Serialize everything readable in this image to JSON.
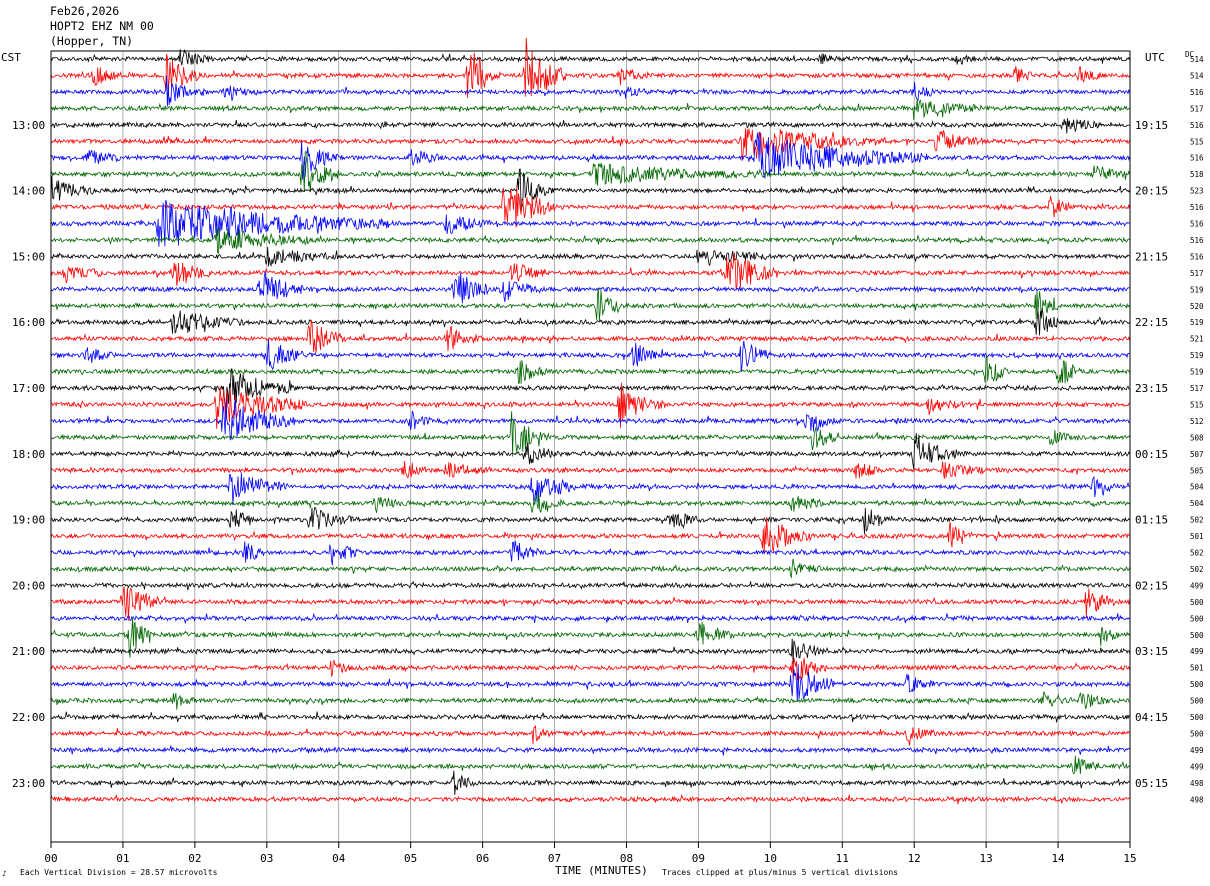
{
  "header": {
    "date": "Feb26,2026",
    "station": "HOPT2 EHZ NM 00",
    "location": "(Hopper, TN)"
  },
  "left_timezone": "CST",
  "right_timezone": "UTC",
  "dc_header": "DC",
  "footer": {
    "corner_mark": "♪",
    "scale": "Each Vertical Division =   28.57 microvolts",
    "clip_note": "Traces clipped at plus/minus 5 vertical divisions"
  },
  "chart_data": {
    "type": "line",
    "subtype": "helicorder",
    "xlabel": "TIME (MINUTES)",
    "xlim": [
      0,
      15
    ],
    "x_ticks": [
      "00",
      "01",
      "02",
      "03",
      "04",
      "05",
      "06",
      "07",
      "08",
      "09",
      "10",
      "11",
      "12",
      "13",
      "14",
      "15"
    ],
    "left_hour_labels": [
      "13:00",
      "14:00",
      "15:00",
      "16:00",
      "17:00",
      "18:00",
      "19:00",
      "20:00",
      "21:00",
      "22:00",
      "23:00"
    ],
    "right_hour_labels": [
      "19:15",
      "20:15",
      "21:15",
      "22:15",
      "23:15",
      "00:15",
      "01:15",
      "02:15",
      "03:15",
      "04:15",
      "05:15"
    ],
    "minutes_per_line": 15,
    "first_line_hour_offset": 4,
    "line_colors": [
      "#000000",
      "#ff0000",
      "#0000ff",
      "#006600"
    ],
    "grid": true,
    "dc_offsets": [
      514,
      514,
      516,
      517,
      516,
      515,
      516,
      518,
      523,
      516,
      516,
      516,
      516,
      517,
      519,
      520,
      519,
      521,
      519,
      519,
      517,
      515,
      512,
      508,
      507,
      505,
      504,
      504,
      502,
      501,
      502,
      502,
      499,
      500,
      500,
      500,
      499,
      501,
      500,
      500,
      500,
      500,
      499,
      499,
      498,
      498
    ],
    "events": [
      {
        "line": 0,
        "start": 1.8,
        "dur": 0.45,
        "amp": 1.2
      },
      {
        "line": 0,
        "start": 10.7,
        "dur": 0.25,
        "amp": 0.8
      },
      {
        "line": 0,
        "start": 12.6,
        "dur": 0.3,
        "amp": 0.6
      },
      {
        "line": 1,
        "start": 0.6,
        "dur": 0.4,
        "amp": 1.2
      },
      {
        "line": 1,
        "start": 1.6,
        "dur": 0.5,
        "amp": 2.5
      },
      {
        "line": 1,
        "start": 5.8,
        "dur": 0.45,
        "amp": 3.5
      },
      {
        "line": 1,
        "start": 6.6,
        "dur": 0.55,
        "amp": 4.5
      },
      {
        "line": 1,
        "start": 7.9,
        "dur": 0.4,
        "amp": 1.0
      },
      {
        "line": 1,
        "start": 13.4,
        "dur": 0.3,
        "amp": 0.9
      },
      {
        "line": 1,
        "start": 14.3,
        "dur": 0.3,
        "amp": 1.0
      },
      {
        "line": 2,
        "start": 1.6,
        "dur": 0.5,
        "amp": 1.6
      },
      {
        "line": 2,
        "start": 2.4,
        "dur": 0.5,
        "amp": 0.8
      },
      {
        "line": 2,
        "start": 8.0,
        "dur": 0.3,
        "amp": 0.8
      },
      {
        "line": 2,
        "start": 12.0,
        "dur": 0.3,
        "amp": 1.0
      },
      {
        "line": 3,
        "start": 12.0,
        "dur": 1.0,
        "amp": 1.2
      },
      {
        "line": 4,
        "start": 14.1,
        "dur": 0.5,
        "amp": 1.0
      },
      {
        "line": 5,
        "start": 9.6,
        "dur": 2.0,
        "amp": 2.2
      },
      {
        "line": 5,
        "start": 12.3,
        "dur": 0.6,
        "amp": 1.5
      },
      {
        "line": 6,
        "start": 0.5,
        "dur": 0.5,
        "amp": 1.0
      },
      {
        "line": 6,
        "start": 3.5,
        "dur": 0.5,
        "amp": 2.5
      },
      {
        "line": 6,
        "start": 5.0,
        "dur": 0.5,
        "amp": 1.0
      },
      {
        "line": 6,
        "start": 9.8,
        "dur": 2.4,
        "amp": 2.8
      },
      {
        "line": 7,
        "start": 3.5,
        "dur": 0.5,
        "amp": 3.0
      },
      {
        "line": 7,
        "start": 7.5,
        "dur": 2.5,
        "amp": 1.2
      },
      {
        "line": 7,
        "start": 14.5,
        "dur": 0.5,
        "amp": 1.0
      },
      {
        "line": 8,
        "start": 0.0,
        "dur": 0.6,
        "amp": 1.5
      },
      {
        "line": 8,
        "start": 6.5,
        "dur": 0.5,
        "amp": 2.5
      },
      {
        "line": 9,
        "start": 6.3,
        "dur": 0.7,
        "amp": 3.5
      },
      {
        "line": 9,
        "start": 13.9,
        "dur": 0.3,
        "amp": 1.5
      },
      {
        "line": 10,
        "start": 1.5,
        "dur": 3.2,
        "amp": 2.8
      },
      {
        "line": 10,
        "start": 5.5,
        "dur": 0.6,
        "amp": 1.3
      },
      {
        "line": 11,
        "start": 2.3,
        "dur": 1.5,
        "amp": 1.5
      },
      {
        "line": 12,
        "start": 3.0,
        "dur": 1.0,
        "amp": 1.0
      },
      {
        "line": 12,
        "start": 9.0,
        "dur": 1.0,
        "amp": 1.0
      },
      {
        "line": 13,
        "start": 0.2,
        "dur": 0.5,
        "amp": 1.3
      },
      {
        "line": 13,
        "start": 1.7,
        "dur": 0.5,
        "amp": 2.0
      },
      {
        "line": 13,
        "start": 6.4,
        "dur": 0.5,
        "amp": 1.5
      },
      {
        "line": 13,
        "start": 9.4,
        "dur": 0.7,
        "amp": 3.0
      },
      {
        "line": 14,
        "start": 2.9,
        "dur": 0.6,
        "amp": 2.5
      },
      {
        "line": 14,
        "start": 5.6,
        "dur": 0.5,
        "amp": 2.5
      },
      {
        "line": 14,
        "start": 6.3,
        "dur": 0.5,
        "amp": 1.5
      },
      {
        "line": 15,
        "start": 7.6,
        "dur": 0.3,
        "amp": 2.5
      },
      {
        "line": 15,
        "start": 13.7,
        "dur": 0.3,
        "amp": 2.0
      },
      {
        "line": 16,
        "start": 1.7,
        "dur": 1.0,
        "amp": 1.5
      },
      {
        "line": 16,
        "start": 13.7,
        "dur": 0.3,
        "amp": 2.5
      },
      {
        "line": 17,
        "start": 3.6,
        "dur": 0.5,
        "amp": 2.5
      },
      {
        "line": 17,
        "start": 5.5,
        "dur": 0.5,
        "amp": 1.5
      },
      {
        "line": 18,
        "start": 0.5,
        "dur": 0.4,
        "amp": 1.0
      },
      {
        "line": 18,
        "start": 3.0,
        "dur": 0.5,
        "amp": 2.0
      },
      {
        "line": 18,
        "start": 8.1,
        "dur": 0.4,
        "amp": 1.5
      },
      {
        "line": 18,
        "start": 9.6,
        "dur": 0.4,
        "amp": 2.0
      },
      {
        "line": 19,
        "start": 6.5,
        "dur": 0.4,
        "amp": 1.5
      },
      {
        "line": 19,
        "start": 13.0,
        "dur": 0.3,
        "amp": 2.5
      },
      {
        "line": 19,
        "start": 14.0,
        "dur": 0.3,
        "amp": 2.5
      },
      {
        "line": 20,
        "start": 2.4,
        "dur": 1.0,
        "amp": 2.5
      },
      {
        "line": 21,
        "start": 2.3,
        "dur": 1.3,
        "amp": 2.5
      },
      {
        "line": 21,
        "start": 7.9,
        "dur": 0.6,
        "amp": 2.5
      },
      {
        "line": 21,
        "start": 12.2,
        "dur": 0.5,
        "amp": 1.0
      },
      {
        "line": 22,
        "start": 2.4,
        "dur": 1.0,
        "amp": 3.0
      },
      {
        "line": 22,
        "start": 5.0,
        "dur": 0.3,
        "amp": 1.0
      },
      {
        "line": 22,
        "start": 10.5,
        "dur": 0.4,
        "amp": 2.0
      },
      {
        "line": 23,
        "start": 6.4,
        "dur": 0.5,
        "amp": 3.0
      },
      {
        "line": 23,
        "start": 10.6,
        "dur": 0.3,
        "amp": 2.0
      },
      {
        "line": 23,
        "start": 13.9,
        "dur": 0.3,
        "amp": 1.0
      },
      {
        "line": 24,
        "start": 6.6,
        "dur": 0.5,
        "amp": 1.5
      },
      {
        "line": 24,
        "start": 12.0,
        "dur": 0.6,
        "amp": 2.5
      },
      {
        "line": 25,
        "start": 4.9,
        "dur": 0.3,
        "amp": 1.0
      },
      {
        "line": 25,
        "start": 5.5,
        "dur": 0.6,
        "amp": 1.0
      },
      {
        "line": 25,
        "start": 11.2,
        "dur": 0.4,
        "amp": 1.0
      },
      {
        "line": 25,
        "start": 12.4,
        "dur": 0.6,
        "amp": 1.0
      },
      {
        "line": 26,
        "start": 2.5,
        "dur": 0.8,
        "amp": 2.0
      },
      {
        "line": 26,
        "start": 6.7,
        "dur": 0.6,
        "amp": 2.5
      },
      {
        "line": 26,
        "start": 14.5,
        "dur": 0.3,
        "amp": 1.2
      },
      {
        "line": 27,
        "start": 4.5,
        "dur": 0.5,
        "amp": 1.0
      },
      {
        "line": 27,
        "start": 6.7,
        "dur": 0.4,
        "amp": 1.5
      },
      {
        "line": 27,
        "start": 10.3,
        "dur": 0.5,
        "amp": 1.0
      },
      {
        "line": 28,
        "start": 2.5,
        "dur": 0.4,
        "amp": 1.5
      },
      {
        "line": 28,
        "start": 3.6,
        "dur": 0.6,
        "amp": 1.5
      },
      {
        "line": 28,
        "start": 8.6,
        "dur": 0.5,
        "amp": 1.0
      },
      {
        "line": 28,
        "start": 11.3,
        "dur": 0.4,
        "amp": 1.5
      },
      {
        "line": 29,
        "start": 9.9,
        "dur": 0.7,
        "amp": 2.5
      },
      {
        "line": 29,
        "start": 12.5,
        "dur": 0.3,
        "amp": 1.5
      },
      {
        "line": 30,
        "start": 2.7,
        "dur": 0.3,
        "amp": 1.5
      },
      {
        "line": 30,
        "start": 3.9,
        "dur": 0.4,
        "amp": 1.8
      },
      {
        "line": 30,
        "start": 6.4,
        "dur": 0.4,
        "amp": 1.5
      },
      {
        "line": 31,
        "start": 10.3,
        "dur": 0.4,
        "amp": 1.0
      },
      {
        "line": 33,
        "start": 1.0,
        "dur": 0.6,
        "amp": 2.5
      },
      {
        "line": 33,
        "start": 14.4,
        "dur": 0.4,
        "amp": 2.0
      },
      {
        "line": 35,
        "start": 1.1,
        "dur": 0.3,
        "amp": 2.5
      },
      {
        "line": 35,
        "start": 9.0,
        "dur": 0.5,
        "amp": 1.5
      },
      {
        "line": 35,
        "start": 14.6,
        "dur": 0.3,
        "amp": 1.2
      },
      {
        "line": 36,
        "start": 10.3,
        "dur": 0.5,
        "amp": 1.5
      },
      {
        "line": 37,
        "start": 3.9,
        "dur": 0.3,
        "amp": 1.0
      },
      {
        "line": 37,
        "start": 10.3,
        "dur": 0.5,
        "amp": 2.0
      },
      {
        "line": 38,
        "start": 10.3,
        "dur": 0.6,
        "amp": 3.0
      },
      {
        "line": 38,
        "start": 11.9,
        "dur": 0.4,
        "amp": 1.0
      },
      {
        "line": 39,
        "start": 1.7,
        "dur": 0.3,
        "amp": 1.2
      },
      {
        "line": 39,
        "start": 13.8,
        "dur": 0.3,
        "amp": 1.0
      },
      {
        "line": 39,
        "start": 14.3,
        "dur": 0.4,
        "amp": 1.2
      },
      {
        "line": 41,
        "start": 6.7,
        "dur": 0.3,
        "amp": 1.0
      },
      {
        "line": 41,
        "start": 11.9,
        "dur": 0.4,
        "amp": 1.0
      },
      {
        "line": 43,
        "start": 14.2,
        "dur": 0.4,
        "amp": 1.2
      },
      {
        "line": 44,
        "start": 5.6,
        "dur": 0.3,
        "amp": 1.2
      }
    ]
  }
}
